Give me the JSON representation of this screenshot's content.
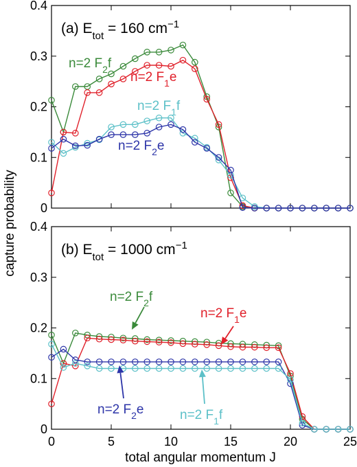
{
  "figure": {
    "ylabel": "capture probability",
    "xlabel": "total angular momentum J",
    "x_ticks": [
      "0",
      "5",
      "10",
      "15",
      "20",
      "25"
    ],
    "y_ticks": [
      "0",
      "0.1",
      "0.2",
      "0.3",
      "0.4"
    ]
  },
  "colors": {
    "F2f": "#3a8a3a",
    "F1e": "#e0202a",
    "F1f": "#5cc0c8",
    "F2e": "#2c34a8"
  },
  "chart_data": [
    {
      "type": "line",
      "panel": "(a)",
      "title": {
        "prefix": "(a)  E",
        "sub": "tot",
        "suffix": " = 160 cm",
        "sup": "−1"
      },
      "xlim": [
        0,
        25
      ],
      "ylim": [
        0,
        0.4
      ],
      "x": [
        0,
        1,
        2,
        3,
        4,
        5,
        6,
        7,
        8,
        9,
        10,
        11,
        12,
        13,
        14,
        15,
        16,
        17,
        18,
        19,
        20,
        21,
        22,
        23,
        24,
        25
      ],
      "series": [
        {
          "key": "F2f",
          "label": {
            "pre": "n=2 F",
            "sub": "2",
            "post": "f"
          },
          "values": [
            0.213,
            0.15,
            0.24,
            0.24,
            0.255,
            0.265,
            0.28,
            0.295,
            0.308,
            0.308,
            0.312,
            0.322,
            0.288,
            0.22,
            0.16,
            0.03,
            0.003,
            0,
            0,
            0,
            0,
            0,
            0,
            0,
            0,
            0
          ]
        },
        {
          "key": "F1e",
          "label": {
            "pre": "n=2 F",
            "sub": "1",
            "post": "e"
          },
          "values": [
            0.03,
            0.15,
            0.148,
            0.228,
            0.228,
            0.245,
            0.255,
            0.27,
            0.282,
            0.282,
            0.28,
            0.292,
            0.275,
            0.215,
            0.165,
            0.06,
            0.005,
            0,
            0,
            0,
            0,
            0,
            0,
            0,
            0,
            0
          ]
        },
        {
          "key": "F1f",
          "label": {
            "pre": "n=2 F",
            "sub": "1",
            "post": "f"
          },
          "values": [
            0.13,
            0.108,
            0.12,
            0.128,
            0.135,
            0.16,
            0.165,
            0.165,
            0.172,
            0.178,
            0.178,
            0.148,
            0.138,
            0.12,
            0.095,
            0.065,
            0.02,
            0.003,
            0,
            0,
            0,
            0,
            0,
            0,
            0,
            0
          ]
        },
        {
          "key": "F2e",
          "label": {
            "pre": "n=2 F",
            "sub": "2",
            "post": "e"
          },
          "values": [
            0.118,
            0.136,
            0.123,
            0.124,
            0.136,
            0.145,
            0.145,
            0.145,
            0.148,
            0.16,
            0.165,
            0.155,
            0.13,
            0.118,
            0.1,
            0.075,
            0.001,
            0,
            0,
            0,
            0,
            0,
            0,
            0,
            0,
            0
          ]
        }
      ]
    },
    {
      "type": "line",
      "panel": "(b)",
      "title": {
        "prefix": "(b)  E",
        "sub": "tot",
        "suffix": " = 1000 cm",
        "sup": "−1"
      },
      "xlim": [
        0,
        25
      ],
      "ylim": [
        0,
        0.4
      ],
      "x": [
        0,
        1,
        2,
        3,
        4,
        5,
        6,
        7,
        8,
        9,
        10,
        11,
        12,
        13,
        14,
        15,
        16,
        17,
        18,
        19,
        20,
        21,
        22,
        23,
        24,
        25
      ],
      "series": [
        {
          "key": "F2f",
          "label": {
            "pre": "n=2 F",
            "sub": "2",
            "post": "f"
          },
          "values": [
            0.186,
            0.13,
            0.19,
            0.186,
            0.183,
            0.182,
            0.18,
            0.179,
            0.177,
            0.176,
            0.175,
            0.174,
            0.173,
            0.172,
            0.17,
            0.169,
            0.168,
            0.167,
            0.166,
            0.165,
            0.105,
            0.02,
            0,
            0,
            0,
            0
          ]
        },
        {
          "key": "F1e",
          "label": {
            "pre": "n=2 F",
            "sub": "1",
            "post": "e"
          },
          "values": [
            0.05,
            0.13,
            0.125,
            0.18,
            0.178,
            0.177,
            0.176,
            0.174,
            0.173,
            0.172,
            0.171,
            0.169,
            0.168,
            0.167,
            0.165,
            0.163,
            0.162,
            0.162,
            0.161,
            0.161,
            0.11,
            0.025,
            0,
            0,
            0,
            0
          ]
        },
        {
          "key": "F2e",
          "label": {
            "pre": "n=2 F",
            "sub": "2",
            "post": "e"
          },
          "values": [
            0.142,
            0.158,
            0.137,
            0.133,
            0.133,
            0.133,
            0.133,
            0.133,
            0.133,
            0.133,
            0.133,
            0.133,
            0.133,
            0.133,
            0.133,
            0.133,
            0.133,
            0.133,
            0.133,
            0.133,
            0.09,
            0.008,
            0,
            0,
            0,
            0
          ]
        },
        {
          "key": "F1f",
          "label": {
            "pre": "n=2 F",
            "sub": "1",
            "post": "f"
          },
          "values": [
            0.168,
            0.122,
            0.13,
            0.125,
            0.12,
            0.12,
            0.12,
            0.12,
            0.12,
            0.12,
            0.12,
            0.12,
            0.12,
            0.12,
            0.12,
            0.12,
            0.12,
            0.12,
            0.12,
            0.12,
            0.098,
            0.012,
            0,
            0,
            0,
            0
          ]
        }
      ]
    }
  ]
}
